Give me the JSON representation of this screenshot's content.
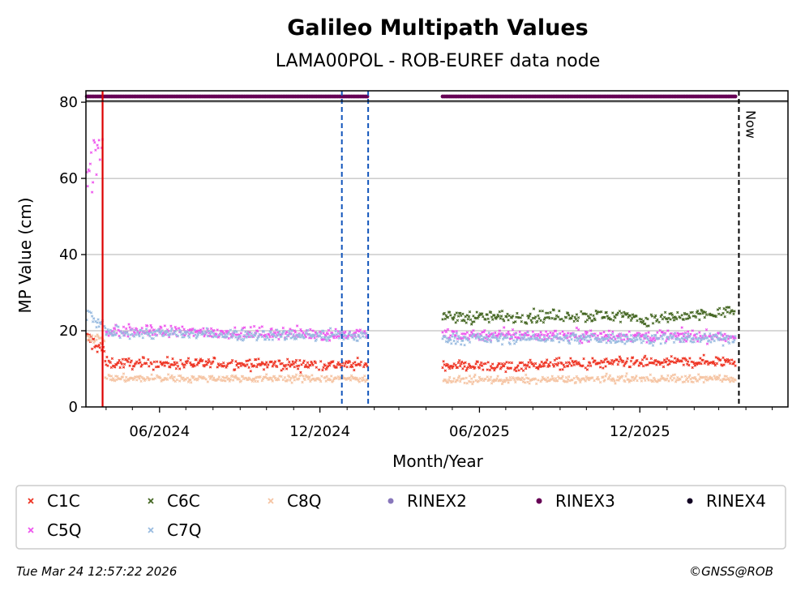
{
  "chart_data": {
    "type": "scatter",
    "title": "Galileo Multipath Values",
    "subtitle": "LAMA00POL - ROB-EUREF data node",
    "xlabel": "Month/Year",
    "ylabel": "MP Value (cm)",
    "ylim": [
      0,
      83
    ],
    "xlim": [
      "2024-03-09",
      "2026-05-19"
    ],
    "y_ticks": [
      0,
      20,
      40,
      60,
      80
    ],
    "x_ticks": [
      {
        "date": "2024-06-01",
        "label": "06/2024"
      },
      {
        "date": "2024-12-01",
        "label": "12/2024"
      },
      {
        "date": "2025-06-01",
        "label": "06/2025"
      },
      {
        "date": "2025-12-01",
        "label": "12/2025"
      }
    ],
    "x_minor_ticks": [
      "2024-04-01",
      "2024-05-01",
      "2024-07-01",
      "2024-08-01",
      "2024-09-01",
      "2024-10-01",
      "2024-11-01",
      "2025-01-01",
      "2025-02-01",
      "2025-03-01",
      "2025-04-01",
      "2025-05-01",
      "2025-07-01",
      "2025-08-01",
      "2025-09-01",
      "2025-10-01",
      "2025-11-01",
      "2026-01-01",
      "2026-02-01",
      "2026-03-01",
      "2026-04-01",
      "2026-05-01"
    ],
    "grid": "horizontal",
    "observation_periods": [
      {
        "start": "2024-03-10",
        "end": "2025-01-24"
      },
      {
        "start": "2025-04-20",
        "end": "2026-03-20"
      }
    ],
    "series": [
      {
        "name": "C1C",
        "color": "#ee3322",
        "marker": "x",
        "segments": [
          {
            "start": "2024-03-10",
            "end": "2024-03-30",
            "from": 18,
            "to": 15,
            "noise": 1.6
          },
          {
            "start": "2024-03-31",
            "end": "2025-01-24",
            "from": 11.5,
            "to": 11,
            "noise": 1.0
          },
          {
            "start": "2025-04-20",
            "end": "2025-07-15",
            "from": 11,
            "to": 10.5,
            "noise": 1.0
          },
          {
            "start": "2025-07-16",
            "end": "2026-03-20",
            "from": 11,
            "to": 12,
            "noise": 1.0
          }
        ]
      },
      {
        "name": "C5Q",
        "color": "#ee55ee",
        "marker": "x",
        "segments": [
          {
            "start": "2024-03-10",
            "end": "2024-03-28",
            "from": 60,
            "to": 70,
            "noise": 6
          },
          {
            "start": "2024-04-01",
            "end": "2025-01-24",
            "from": 20,
            "to": 19,
            "noise": 1.1
          },
          {
            "start": "2025-04-20",
            "end": "2026-03-20",
            "from": 19,
            "to": 18.5,
            "noise": 1.1
          }
        ]
      },
      {
        "name": "C6C",
        "color": "#446622",
        "marker": "x",
        "segments": [
          {
            "start": "2025-04-20",
            "end": "2025-11-30",
            "from": 23.5,
            "to": 24,
            "noise": 1.2
          },
          {
            "start": "2025-12-01",
            "end": "2026-03-20",
            "from": 22.5,
            "to": 25,
            "noise": 1.2
          }
        ]
      },
      {
        "name": "C7Q",
        "color": "#99bbe0",
        "marker": "x",
        "segments": [
          {
            "start": "2024-03-10",
            "end": "2024-03-30",
            "from": 24,
            "to": 21,
            "noise": 1.2
          },
          {
            "start": "2024-03-31",
            "end": "2025-01-24",
            "from": 19.5,
            "to": 18.5,
            "noise": 1.0
          },
          {
            "start": "2025-04-20",
            "end": "2026-03-20",
            "from": 18,
            "to": 18,
            "noise": 1.0
          }
        ]
      },
      {
        "name": "C8Q",
        "color": "#f5c4a3",
        "marker": "x",
        "segments": [
          {
            "start": "2024-03-10",
            "end": "2024-03-30",
            "from": 18.5,
            "to": 17.5,
            "noise": 0.8
          },
          {
            "start": "2024-03-31",
            "end": "2025-01-24",
            "from": 7.5,
            "to": 7.5,
            "noise": 0.7
          },
          {
            "start": "2025-04-20",
            "end": "2026-03-20",
            "from": 7,
            "to": 7.5,
            "noise": 0.7
          }
        ]
      }
    ],
    "rinex_series": [
      {
        "name": "RINEX2",
        "color": "#8877bb",
        "marker": "o"
      },
      {
        "name": "RINEX3",
        "color": "#660055",
        "marker": "o",
        "y": 81.5
      },
      {
        "name": "RINEX4",
        "color": "#110022",
        "marker": "o"
      }
    ],
    "vertical_lines": [
      {
        "date": "2024-03-28",
        "color": "#dd0000",
        "style": "solid"
      },
      {
        "date": "2024-12-26",
        "color": "#1155bb",
        "style": "dashed"
      },
      {
        "date": "2025-01-25",
        "color": "#1155bb",
        "style": "dashed"
      },
      {
        "date": "2026-03-24",
        "color": "#000000",
        "style": "dashed",
        "label": "Now"
      }
    ],
    "legend": {
      "placement": "bottom",
      "entries": [
        {
          "name": "C1C",
          "color": "#ee3322",
          "marker": "x"
        },
        {
          "name": "C6C",
          "color": "#446622",
          "marker": "x"
        },
        {
          "name": "C8Q",
          "color": "#f5c4a3",
          "marker": "x"
        },
        {
          "name": "RINEX2",
          "color": "#8877bb",
          "marker": "o"
        },
        {
          "name": "RINEX3",
          "color": "#660055",
          "marker": "o"
        },
        {
          "name": "RINEX4",
          "color": "#110022",
          "marker": "o"
        },
        {
          "name": "C5Q",
          "color": "#ee55ee",
          "marker": "x"
        },
        {
          "name": "C7Q",
          "color": "#99bbe0",
          "marker": "x"
        }
      ]
    }
  },
  "footer": {
    "timestamp": "Tue Mar 24 12:57:22 2026",
    "copyright": "©GNSS@ROB"
  }
}
